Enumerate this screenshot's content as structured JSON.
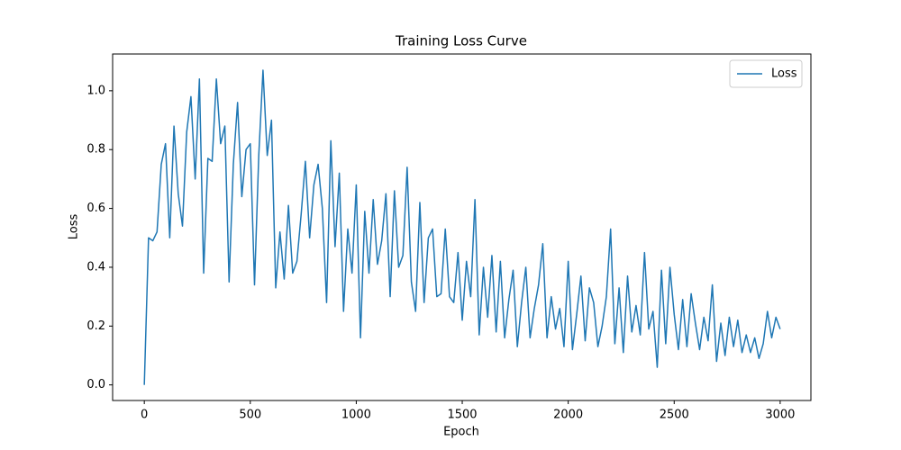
{
  "chart_data": {
    "type": "line",
    "title": "Training Loss Curve",
    "x_label": "Epoch",
    "y_label": "Loss",
    "x": [
      0,
      20,
      40,
      60,
      80,
      100,
      120,
      140,
      160,
      180,
      200,
      220,
      240,
      260,
      280,
      300,
      320,
      340,
      360,
      380,
      400,
      420,
      440,
      460,
      480,
      500,
      520,
      540,
      560,
      580,
      600,
      620,
      640,
      660,
      680,
      700,
      720,
      740,
      760,
      780,
      800,
      820,
      840,
      860,
      880,
      900,
      920,
      940,
      960,
      980,
      1000,
      1020,
      1040,
      1060,
      1080,
      1100,
      1120,
      1140,
      1160,
      1180,
      1200,
      1220,
      1240,
      1260,
      1280,
      1300,
      1320,
      1340,
      1360,
      1380,
      1400,
      1420,
      1440,
      1460,
      1480,
      1500,
      1520,
      1540,
      1560,
      1580,
      1600,
      1620,
      1640,
      1660,
      1680,
      1700,
      1720,
      1740,
      1760,
      1780,
      1800,
      1820,
      1840,
      1860,
      1880,
      1900,
      1920,
      1940,
      1960,
      1980,
      2000,
      2020,
      2040,
      2060,
      2080,
      2100,
      2120,
      2140,
      2160,
      2180,
      2200,
      2220,
      2240,
      2260,
      2280,
      2300,
      2320,
      2340,
      2360,
      2380,
      2400,
      2420,
      2440,
      2460,
      2480,
      2500,
      2520,
      2540,
      2560,
      2580,
      2600,
      2620,
      2640,
      2660,
      2680,
      2700,
      2720,
      2740,
      2760,
      2780,
      2800,
      2820,
      2840,
      2860,
      2880,
      2900,
      2920,
      2940,
      2960,
      2980,
      3000
    ],
    "series": [
      {
        "name": "Loss",
        "color": "#1f77b4",
        "values": [
          0.0,
          0.5,
          0.49,
          0.52,
          0.75,
          0.82,
          0.5,
          0.88,
          0.65,
          0.54,
          0.86,
          0.98,
          0.7,
          1.04,
          0.38,
          0.77,
          0.76,
          1.04,
          0.82,
          0.88,
          0.35,
          0.75,
          0.96,
          0.64,
          0.8,
          0.82,
          0.34,
          0.78,
          1.07,
          0.78,
          0.9,
          0.33,
          0.52,
          0.36,
          0.61,
          0.38,
          0.42,
          0.58,
          0.76,
          0.5,
          0.68,
          0.75,
          0.6,
          0.28,
          0.83,
          0.47,
          0.72,
          0.25,
          0.53,
          0.38,
          0.68,
          0.16,
          0.59,
          0.38,
          0.63,
          0.41,
          0.49,
          0.65,
          0.3,
          0.66,
          0.4,
          0.44,
          0.74,
          0.35,
          0.25,
          0.62,
          0.28,
          0.5,
          0.53,
          0.3,
          0.31,
          0.53,
          0.3,
          0.28,
          0.45,
          0.22,
          0.42,
          0.3,
          0.63,
          0.17,
          0.4,
          0.23,
          0.44,
          0.18,
          0.42,
          0.16,
          0.29,
          0.39,
          0.13,
          0.28,
          0.4,
          0.16,
          0.26,
          0.34,
          0.48,
          0.16,
          0.3,
          0.19,
          0.26,
          0.13,
          0.42,
          0.12,
          0.24,
          0.37,
          0.15,
          0.33,
          0.28,
          0.13,
          0.2,
          0.3,
          0.53,
          0.14,
          0.33,
          0.11,
          0.37,
          0.18,
          0.27,
          0.17,
          0.45,
          0.19,
          0.25,
          0.06,
          0.39,
          0.14,
          0.4,
          0.24,
          0.12,
          0.29,
          0.13,
          0.31,
          0.21,
          0.12,
          0.23,
          0.15,
          0.34,
          0.08,
          0.21,
          0.1,
          0.23,
          0.13,
          0.22,
          0.11,
          0.17,
          0.11,
          0.16,
          0.09,
          0.14,
          0.25,
          0.16,
          0.23,
          0.19
        ]
      }
    ],
    "xlim": [
      -149.5,
      3145
    ],
    "xticks": [
      0,
      500,
      1000,
      1500,
      2000,
      2500,
      3000
    ],
    "ylim": [
      -0.053,
      1.125
    ],
    "yticks": [
      {
        "value": 0,
        "label": "0.0"
      },
      {
        "value": 0.2,
        "label": "0.2"
      },
      {
        "value": 0.4,
        "label": "0.4"
      },
      {
        "value": 0.6,
        "label": "0.6"
      },
      {
        "value": 0.8,
        "label": "0.8"
      },
      {
        "value": 1,
        "label": "1.0"
      }
    ],
    "legend": "upper right",
    "grid": false
  }
}
